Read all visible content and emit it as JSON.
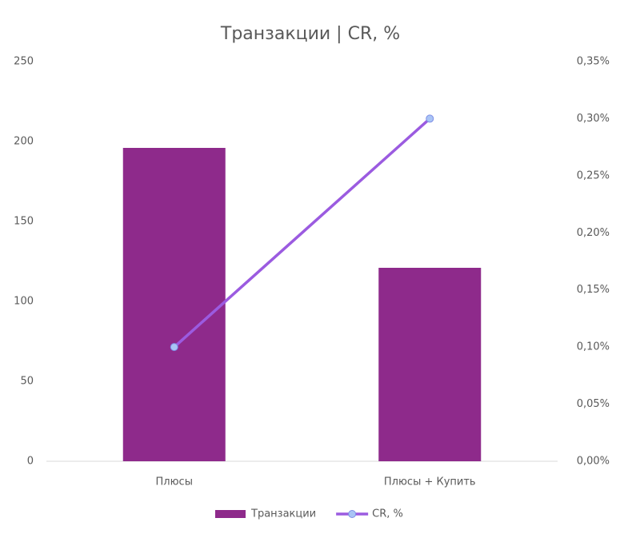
{
  "chart_data": {
    "type": "bar",
    "title": "Транзакции | CR, %",
    "categories": [
      "Плюсы",
      "Плюсы + Купить"
    ],
    "series": [
      {
        "name": "Транзакции",
        "color": "#8e2a8b",
        "values": [
          196,
          121
        ]
      },
      {
        "name": "CR, %",
        "color": "#9b5be0",
        "type": "line",
        "axis": "y2",
        "values": [
          0.1,
          0.3
        ]
      }
    ],
    "ylim": [
      0,
      250
    ],
    "yticks": [
      0,
      50,
      100,
      150,
      200,
      250
    ],
    "y2lim": [
      0,
      0.35
    ],
    "y2ticks": [
      {
        "value": 0,
        "label": "0,00%"
      },
      {
        "value": 0.05,
        "label": "0,05%"
      },
      {
        "value": 0.1,
        "label": "0,10%"
      },
      {
        "value": 0.15,
        "label": "0,15%"
      },
      {
        "value": 0.2,
        "label": "0,20%"
      },
      {
        "value": 0.25,
        "label": "0,25%"
      },
      {
        "value": 0.3,
        "label": "0,30%"
      },
      {
        "value": 0.35,
        "label": "0,35%"
      }
    ],
    "grid": false,
    "legend": "bottom"
  }
}
